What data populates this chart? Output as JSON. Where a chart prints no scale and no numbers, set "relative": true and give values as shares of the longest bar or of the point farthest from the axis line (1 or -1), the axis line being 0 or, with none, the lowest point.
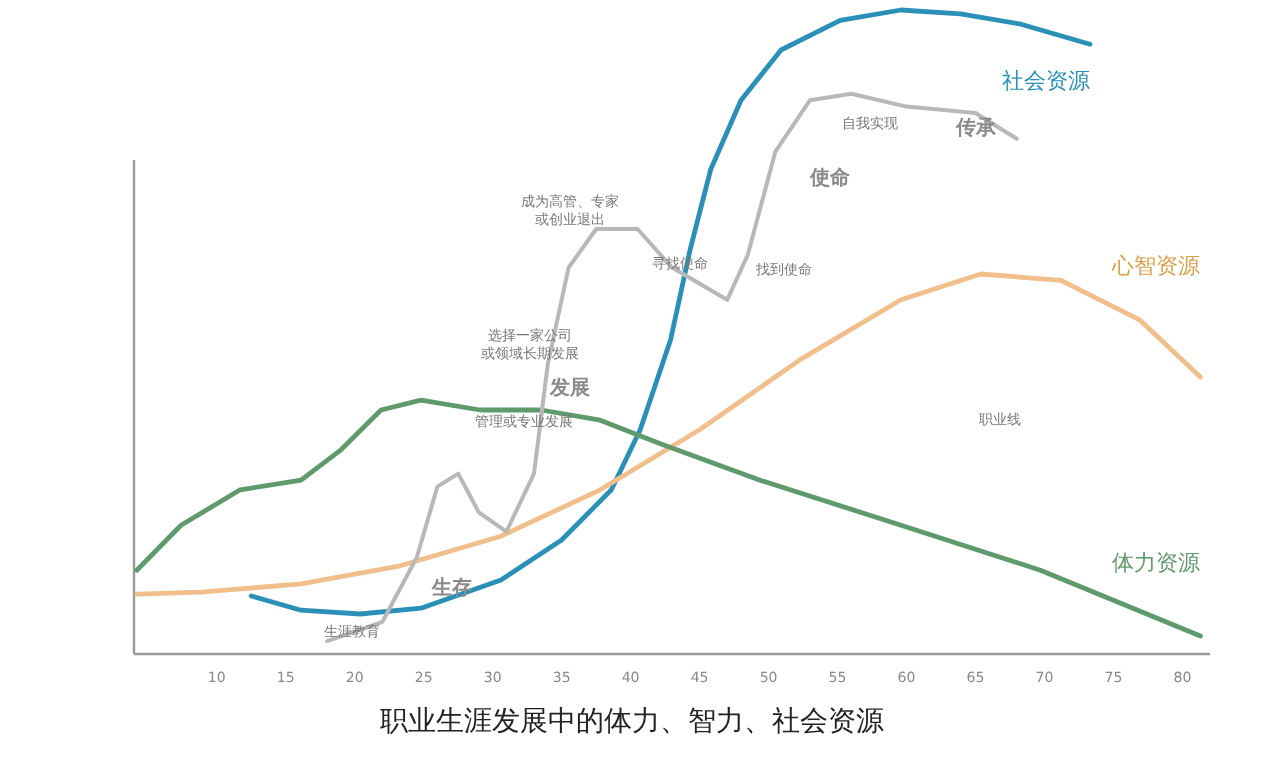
{
  "chart_data": {
    "type": "line",
    "relative": true,
    "title": "职业生涯发展中的体力、智力、社会资源",
    "xlim": [
      4,
      82
    ],
    "xticks": [
      10,
      15,
      20,
      25,
      30,
      35,
      40,
      45,
      50,
      55,
      60,
      65,
      70,
      75,
      80
    ],
    "series": [
      {
        "name": "社会资源",
        "color": "#2a90b8",
        "x": [
          12.5,
          16.1,
          20.4,
          24.8,
          30.6,
          35,
          38.6,
          40.7,
          42.9,
          44.3,
          45.8,
          48,
          50.9,
          55.2,
          59.6,
          63.9,
          68.3,
          73.3
        ],
        "values": [
          0.09,
          0.068,
          0.062,
          0.071,
          0.115,
          0.177,
          0.255,
          0.348,
          0.488,
          0.627,
          0.752,
          0.86,
          0.938,
          0.984,
          1.0,
          0.994,
          0.978,
          0.947
        ]
      },
      {
        "name": "心智资源",
        "color": "#f0bf8c",
        "x": [
          4.2,
          8.8,
          16.1,
          23.3,
          30.6,
          37.8,
          45,
          52.3,
          59.6,
          65.4,
          71.2,
          76.9,
          81.3
        ],
        "values": [
          0.093,
          0.096,
          0.109,
          0.137,
          0.183,
          0.255,
          0.348,
          0.457,
          0.55,
          0.59,
          0.58,
          0.519,
          0.43
        ]
      },
      {
        "name": "体力资源",
        "color": "#5f9a6c",
        "x": [
          4.2,
          7.4,
          11.7,
          16.1,
          19,
          21.9,
          24.8,
          29.1,
          33.5,
          37.8,
          42.2,
          49.4,
          59.6,
          69.7,
          81.3
        ],
        "values": [
          0.13,
          0.2,
          0.255,
          0.27,
          0.317,
          0.379,
          0.394,
          0.379,
          0.379,
          0.363,
          0.326,
          0.27,
          0.2,
          0.13,
          0.028
        ]
      },
      {
        "color": "#b8b8b8",
        "x": [
          18,
          22,
          24.5,
          26,
          27.5,
          29,
          31,
          33,
          34,
          35.5,
          37.5,
          40.5,
          43,
          47,
          48.5,
          50.5,
          53,
          56,
          60,
          65,
          68
        ],
        "values": [
          0.02,
          0.05,
          0.15,
          0.26,
          0.28,
          0.22,
          0.19,
          0.28,
          0.45,
          0.6,
          0.66,
          0.66,
          0.6,
          0.55,
          0.62,
          0.78,
          0.86,
          0.87,
          0.85,
          0.84,
          0.8
        ]
      }
    ],
    "annotations": [
      "生涯教育",
      "生存",
      "管理或专业发展",
      "发展",
      "选择一家公司或领域长期发展",
      "成为高管、专家或创业退出",
      "寻找使命",
      "找到使命",
      "使命",
      "自我实现",
      "传承",
      "职业线"
    ]
  }
}
